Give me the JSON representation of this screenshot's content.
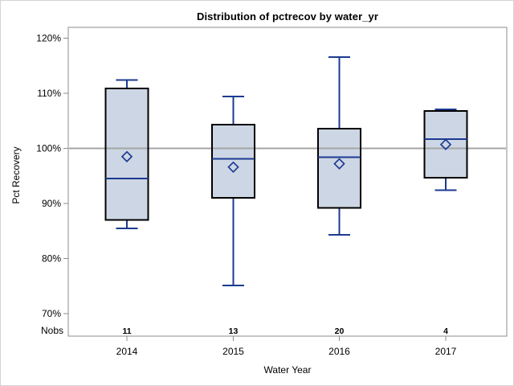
{
  "chart_data": {
    "type": "box",
    "title": "Distribution of pctrecov by water_yr",
    "xlabel": "Water Year",
    "ylabel": "Pct Recovery",
    "nobs_label": "Nobs",
    "categories": [
      "2014",
      "2015",
      "2016",
      "2017"
    ],
    "yticks": [
      120,
      110,
      100,
      90,
      80,
      70
    ],
    "ytick_suffix": "%",
    "ylim": [
      70,
      120
    ],
    "reference_line": 100,
    "grid": false,
    "legend": "none",
    "series": [
      {
        "category": "2014",
        "nobs": 11,
        "min": 85.5,
        "q1": 87.0,
        "median": 94.5,
        "q3": 110.9,
        "max": 112.4,
        "mean": 98.5
      },
      {
        "category": "2015",
        "nobs": 13,
        "min": 75.1,
        "q1": 91.0,
        "median": 98.1,
        "q3": 104.3,
        "max": 109.4,
        "mean": 96.6
      },
      {
        "category": "2016",
        "nobs": 20,
        "min": 84.3,
        "q1": 89.2,
        "median": 98.4,
        "q3": 103.6,
        "max": 116.6,
        "mean": 97.2
      },
      {
        "category": "2017",
        "nobs": 4,
        "min": 92.4,
        "q1": 94.7,
        "median": 101.7,
        "q3": 106.8,
        "max": 107.1,
        "mean": 100.7
      }
    ]
  },
  "colors": {
    "box_fill": "#cdd6e4",
    "box_border": "#000000",
    "whisker": "#1c3a91",
    "median": "#1c3a91",
    "mean_marker": "#1c3a91",
    "reference_line": "#a5a5a5",
    "frame": "#8c8c8c",
    "text": "#000000",
    "figure_border": "#d4d4d4",
    "background": "#ffffff"
  }
}
